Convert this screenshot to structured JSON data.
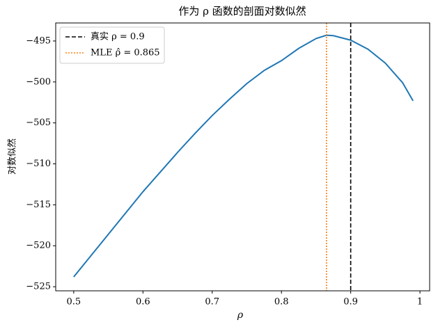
{
  "chart_data": {
    "type": "line",
    "title": "作为 ρ 函数的剖面对数似然",
    "x_label": "ρ",
    "y_label": "对数似然",
    "x": [
      0.5,
      0.525,
      0.55,
      0.575,
      0.6,
      0.625,
      0.65,
      0.675,
      0.7,
      0.725,
      0.75,
      0.775,
      0.8,
      0.825,
      0.85,
      0.865,
      0.875,
      0.9,
      0.925,
      0.95,
      0.975,
      0.99
    ],
    "series": [
      {
        "color": "#1f77b4",
        "values": [
          -523.8,
          -521.2,
          -518.6,
          -516.0,
          -513.4,
          -511.0,
          -508.6,
          -506.3,
          -504.1,
          -502.1,
          -500.2,
          -498.6,
          -497.4,
          -495.9,
          -494.7,
          -494.3,
          -494.35,
          -494.9,
          -496.0,
          -497.7,
          -500.1,
          -502.3
        ]
      }
    ],
    "vlines": [
      {
        "name": "真实 ρ = 0.9",
        "x": 0.9,
        "color": "#000000",
        "style": "dashed"
      },
      {
        "name": "MLE  ρ̂ = 0.865",
        "x": 0.865,
        "color": "#ff7f0e",
        "style": "dotted"
      }
    ],
    "xlim": [
      0.474,
      1.014
    ],
    "ylim": [
      -525.5,
      -492.8
    ],
    "xticks": [
      0.5,
      0.6,
      0.7,
      0.8,
      0.9,
      1.0
    ],
    "yticks": [
      {
        "value": -525,
        "label": "−525"
      },
      {
        "value": -520,
        "label": "−520"
      },
      {
        "value": -515,
        "label": "−515"
      },
      {
        "value": -510,
        "label": "−510"
      },
      {
        "value": -505,
        "label": "−505"
      },
      {
        "value": -500,
        "label": "−500"
      },
      {
        "value": -495,
        "label": "−495"
      }
    ],
    "legend": "upper-left"
  }
}
